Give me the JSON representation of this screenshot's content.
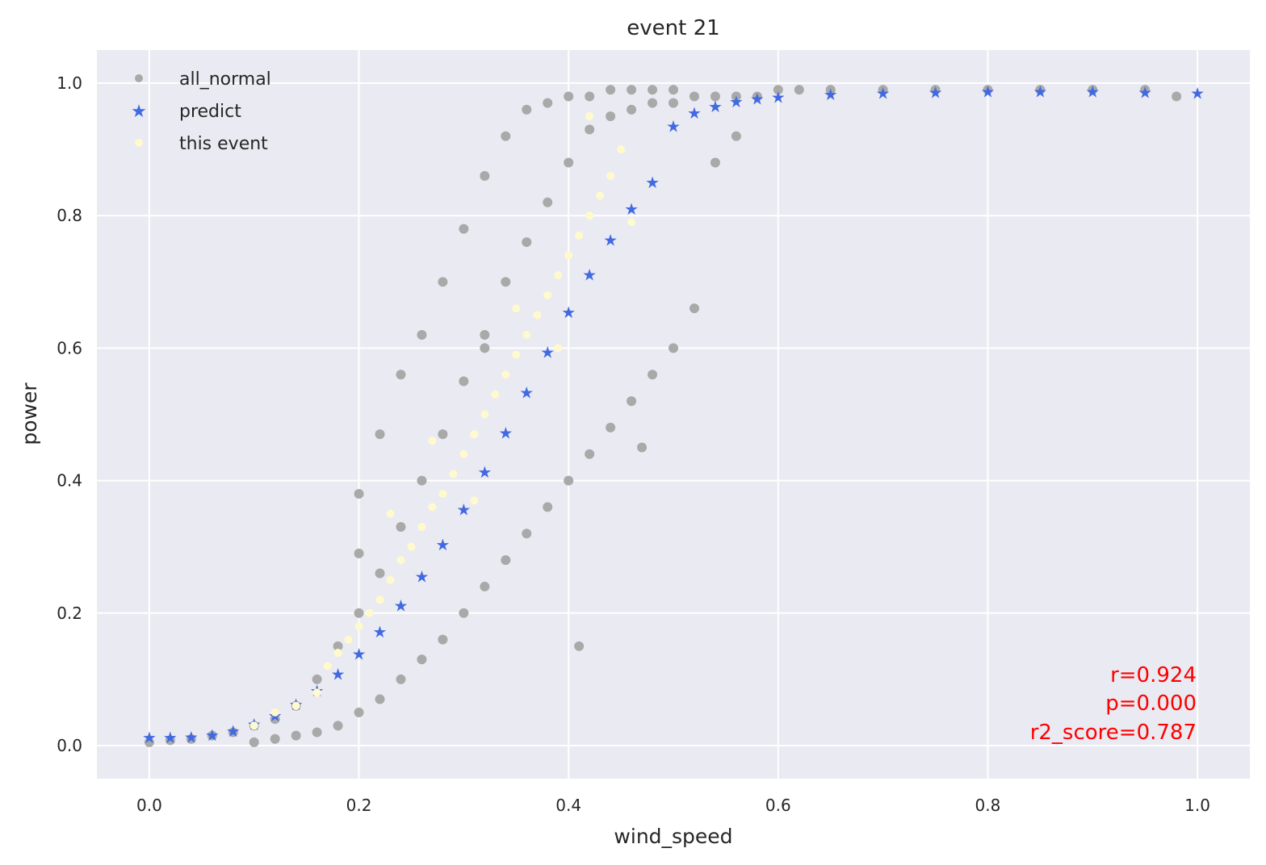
{
  "chart_data": {
    "type": "scatter",
    "title": "event 21",
    "xlabel": "wind_speed",
    "ylabel": "power",
    "xlim": [
      -0.05,
      1.05
    ],
    "ylim": [
      -0.05,
      1.05
    ],
    "xticks": [
      "0.0",
      "0.2",
      "0.4",
      "0.6",
      "0.8",
      "1.0"
    ],
    "xtick_values": [
      0.0,
      0.2,
      0.4,
      0.6,
      0.8,
      1.0
    ],
    "yticks": [
      "0.0",
      "0.2",
      "0.4",
      "0.6",
      "0.8",
      "1.0"
    ],
    "ytick_values": [
      0.0,
      0.2,
      0.4,
      0.6,
      0.8,
      1.0
    ],
    "grid": true,
    "legend_position": "top-left",
    "background": "#eaeaf2",
    "series": [
      {
        "name": "all_normal",
        "marker": "circle",
        "color": "#a9a9a9",
        "x": [
          0.0,
          0.02,
          0.04,
          0.06,
          0.08,
          0.1,
          0.1,
          0.12,
          0.12,
          0.14,
          0.14,
          0.16,
          0.16,
          0.18,
          0.18,
          0.2,
          0.2,
          0.2,
          0.22,
          0.22,
          0.22,
          0.24,
          0.24,
          0.24,
          0.26,
          0.26,
          0.26,
          0.28,
          0.28,
          0.28,
          0.3,
          0.3,
          0.3,
          0.32,
          0.32,
          0.32,
          0.34,
          0.34,
          0.34,
          0.36,
          0.36,
          0.36,
          0.38,
          0.38,
          0.38,
          0.4,
          0.4,
          0.4,
          0.42,
          0.42,
          0.42,
          0.44,
          0.44,
          0.44,
          0.46,
          0.46,
          0.46,
          0.48,
          0.48,
          0.48,
          0.5,
          0.5,
          0.5,
          0.52,
          0.52,
          0.54,
          0.54,
          0.56,
          0.56,
          0.58,
          0.6,
          0.62,
          0.65,
          0.7,
          0.75,
          0.8,
          0.85,
          0.9,
          0.95,
          0.98,
          0.2,
          0.32,
          0.47,
          0.41
        ],
        "y": [
          0.005,
          0.008,
          0.01,
          0.015,
          0.02,
          0.03,
          0.005,
          0.04,
          0.01,
          0.06,
          0.015,
          0.1,
          0.02,
          0.15,
          0.03,
          0.2,
          0.05,
          0.38,
          0.26,
          0.07,
          0.47,
          0.33,
          0.1,
          0.56,
          0.4,
          0.13,
          0.62,
          0.47,
          0.16,
          0.7,
          0.55,
          0.2,
          0.78,
          0.62,
          0.24,
          0.86,
          0.7,
          0.28,
          0.92,
          0.76,
          0.32,
          0.96,
          0.82,
          0.36,
          0.97,
          0.88,
          0.4,
          0.98,
          0.93,
          0.44,
          0.98,
          0.95,
          0.48,
          0.99,
          0.96,
          0.52,
          0.99,
          0.97,
          0.56,
          0.99,
          0.97,
          0.6,
          0.99,
          0.98,
          0.66,
          0.98,
          0.88,
          0.98,
          0.92,
          0.98,
          0.99,
          0.99,
          0.99,
          0.99,
          0.99,
          0.99,
          0.99,
          0.99,
          0.99,
          0.98,
          0.29,
          0.6,
          0.45,
          0.15
        ]
      },
      {
        "name": "predict",
        "marker": "star",
        "color": "#4169e1",
        "x": [
          0.0,
          0.02,
          0.04,
          0.06,
          0.08,
          0.1,
          0.12,
          0.14,
          0.16,
          0.18,
          0.2,
          0.22,
          0.24,
          0.26,
          0.28,
          0.3,
          0.32,
          0.34,
          0.36,
          0.38,
          0.4,
          0.42,
          0.44,
          0.46,
          0.48,
          0.5,
          0.52,
          0.54,
          0.56,
          0.58,
          0.6,
          0.65,
          0.7,
          0.75,
          0.8,
          0.85,
          0.9,
          0.95,
          1.0
        ],
        "y": [
          0.012,
          0.012,
          0.013,
          0.016,
          0.022,
          0.032,
          0.045,
          0.062,
          0.083,
          0.108,
          0.138,
          0.172,
          0.211,
          0.255,
          0.303,
          0.356,
          0.413,
          0.472,
          0.533,
          0.594,
          0.654,
          0.711,
          0.763,
          0.81,
          0.85,
          0.935,
          0.955,
          0.965,
          0.972,
          0.976,
          0.979,
          0.983,
          0.985,
          0.986,
          0.987,
          0.987,
          0.987,
          0.986,
          0.985
        ]
      },
      {
        "name": "this event",
        "marker": "circle",
        "color": "#fffacd",
        "x": [
          0.1,
          0.12,
          0.14,
          0.16,
          0.17,
          0.18,
          0.19,
          0.2,
          0.21,
          0.22,
          0.23,
          0.24,
          0.25,
          0.26,
          0.27,
          0.28,
          0.29,
          0.3,
          0.31,
          0.32,
          0.33,
          0.34,
          0.35,
          0.36,
          0.37,
          0.38,
          0.39,
          0.4,
          0.41,
          0.42,
          0.43,
          0.44,
          0.45,
          0.23,
          0.27,
          0.31,
          0.35,
          0.39,
          0.42,
          0.46
        ],
        "y": [
          0.03,
          0.05,
          0.06,
          0.08,
          0.12,
          0.14,
          0.16,
          0.18,
          0.2,
          0.22,
          0.25,
          0.28,
          0.3,
          0.33,
          0.36,
          0.38,
          0.41,
          0.44,
          0.47,
          0.5,
          0.53,
          0.56,
          0.59,
          0.62,
          0.65,
          0.68,
          0.71,
          0.74,
          0.77,
          0.8,
          0.83,
          0.86,
          0.9,
          0.35,
          0.46,
          0.37,
          0.66,
          0.6,
          0.95,
          0.79
        ]
      }
    ],
    "annotations": [
      "r=0.924",
      "p=0.000",
      "r2_score=0.787"
    ],
    "annotation_color": "#ff0000"
  }
}
